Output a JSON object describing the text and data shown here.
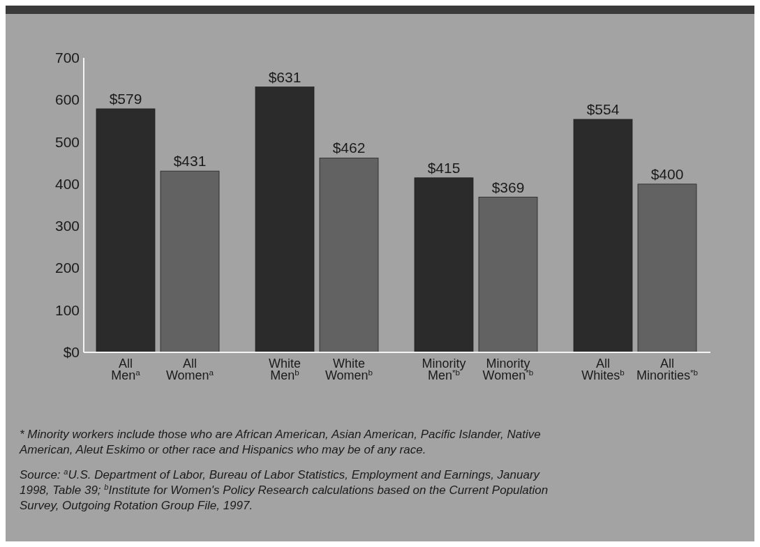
{
  "chart_data": {
    "type": "bar",
    "categories": [
      "All Men$^{a}$",
      "All Women$^{a}$",
      "White Men$^{b}$",
      "White Women$^{b}$",
      "Minority Men$^{*b}$",
      "Minority Women$^{*b}$",
      "All Whites$^{b}$",
      "All Minorities$^{*b}$"
    ],
    "values": [
      579,
      431,
      631,
      462,
      415,
      369,
      554,
      400
    ],
    "value_labels": [
      "$579",
      "$431",
      "$631",
      "$462",
      "$415",
      "$369",
      "$554",
      "$400"
    ],
    "colors": [
      "#2b2b2b",
      "#626262",
      "#2b2b2b",
      "#626262",
      "#2b2b2b",
      "#626262",
      "#2b2b2b",
      "#626262"
    ],
    "ylim": [
      0,
      700
    ],
    "yticks": [
      {
        "value": 0,
        "label": "$0"
      },
      100,
      200,
      300,
      400,
      500,
      600,
      700
    ],
    "grid": false,
    "annotations": [
      "* Minority workers include those who are African American, Asian American, Pacific Islander, Native American, Aleut Eskimo or other race and Hispanics who may be of any race.",
      "Source: $^{a}$U.S. Department of Labor, Bureau of Labor Statistics, Employment and Earnings, January 1998, Table 39; $^{b}$Institute for Women's Policy Research calculations based on the Current Population Survey, Outgoing Rotation Group File, 1997."
    ]
  }
}
